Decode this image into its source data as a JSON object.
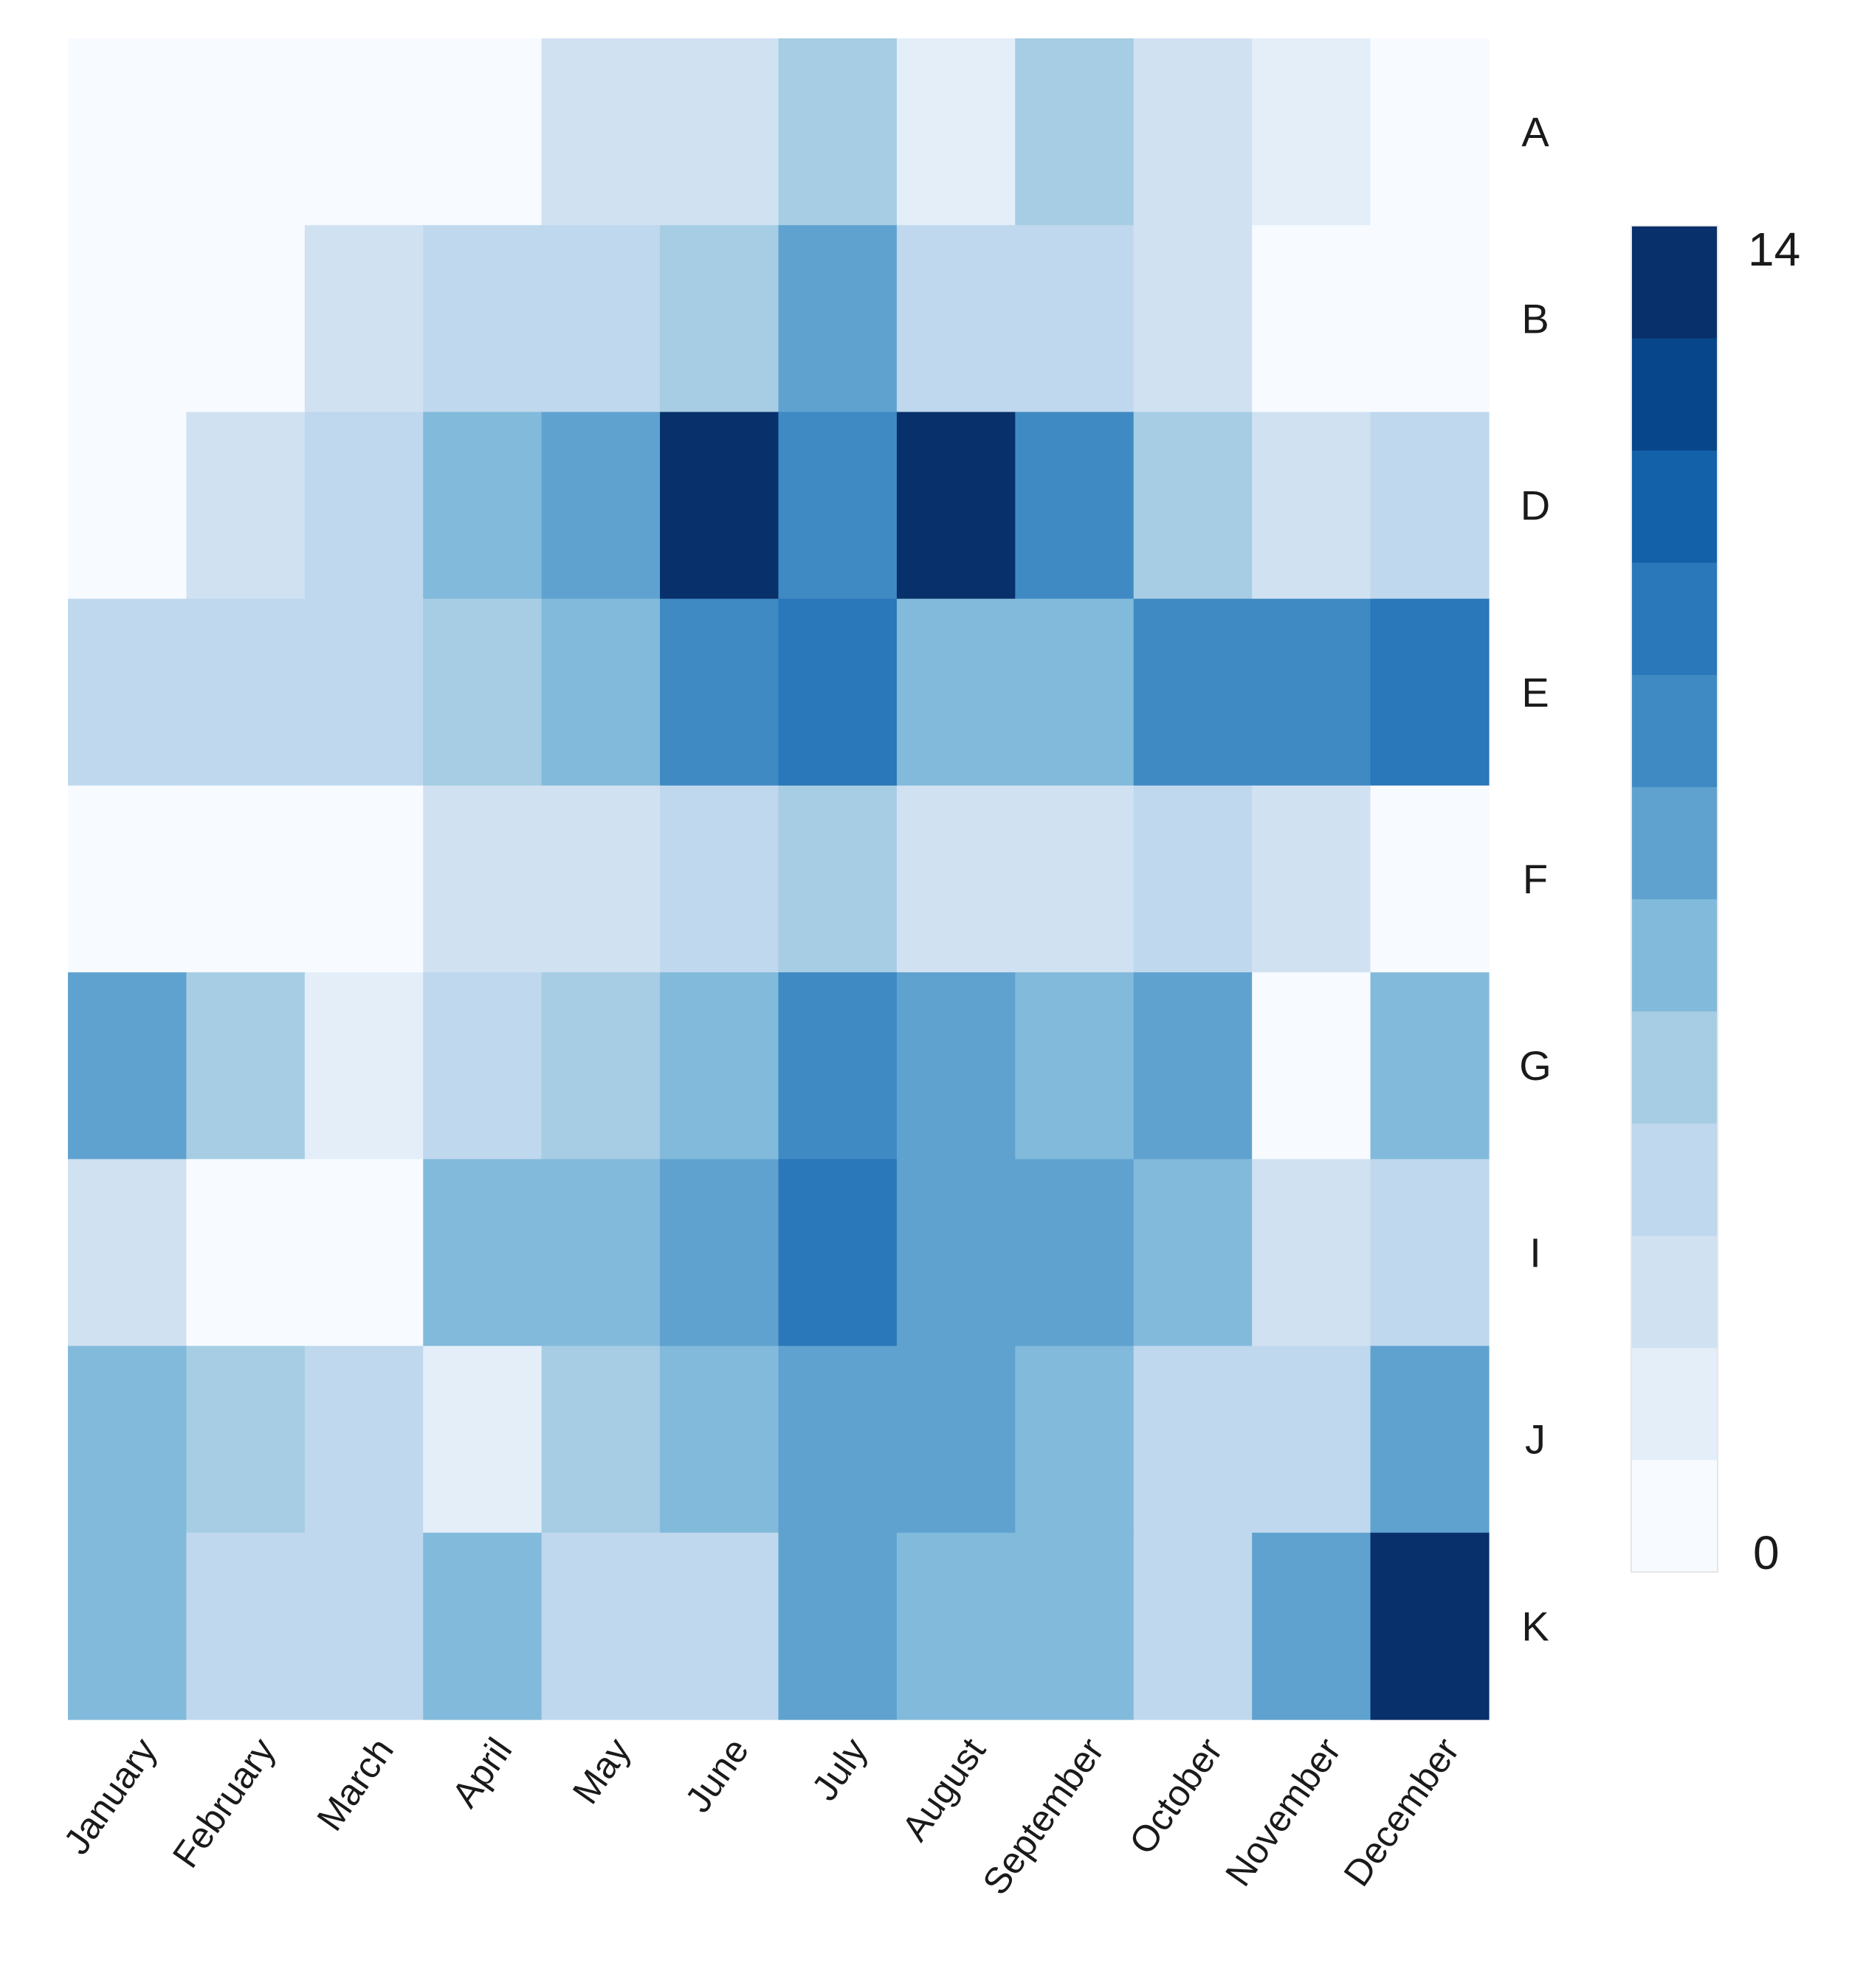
{
  "chart_data": {
    "type": "heatmap",
    "title": "",
    "xlabel": "",
    "ylabel": "",
    "x_categories": [
      "January",
      "February",
      "March",
      "April",
      "May",
      "June",
      "July",
      "August",
      "September",
      "October",
      "November",
      "December"
    ],
    "y_categories": [
      "A",
      "B",
      "D",
      "E",
      "F",
      "G",
      "I",
      "J",
      "K"
    ],
    "values": [
      [
        0,
        0,
        0,
        1,
        3,
        3,
        5,
        2,
        5,
        3,
        2,
        0
      ],
      [
        0,
        0,
        3,
        4,
        4,
        5,
        7,
        4,
        4,
        3,
        0,
        0
      ],
      [
        0,
        3,
        4,
        6,
        7,
        14,
        9,
        14,
        9,
        5,
        3,
        4
      ],
      [
        4,
        4,
        4,
        5,
        6,
        9,
        10,
        6,
        6,
        9,
        9,
        10
      ],
      [
        0,
        0,
        0,
        3,
        3,
        4,
        5,
        3,
        3,
        4,
        3,
        1
      ],
      [
        7,
        5,
        2,
        4,
        5,
        6,
        9,
        8,
        6,
        7,
        1,
        6
      ],
      [
        3,
        1,
        1,
        6,
        6,
        7,
        10,
        8,
        7,
        6,
        3,
        4
      ],
      [
        6,
        5,
        4,
        2,
        5,
        6,
        7,
        7,
        6,
        4,
        4,
        7
      ],
      [
        6,
        4,
        4,
        6,
        4,
        4,
        8,
        6,
        6,
        4,
        7,
        14
      ]
    ],
    "colorbar": {
      "min": 0,
      "max": 14,
      "min_label": "0",
      "max_label": "14",
      "colors": [
        "#f7fbff",
        "#e3eef9",
        "#d0e1f2",
        "#bfd8ed",
        "#a6cde3",
        "#82badb",
        "#5fa2cf",
        "#3f8ac3",
        "#2a77b9",
        "#1361a9",
        "#08468b",
        "#08306b"
      ]
    }
  }
}
